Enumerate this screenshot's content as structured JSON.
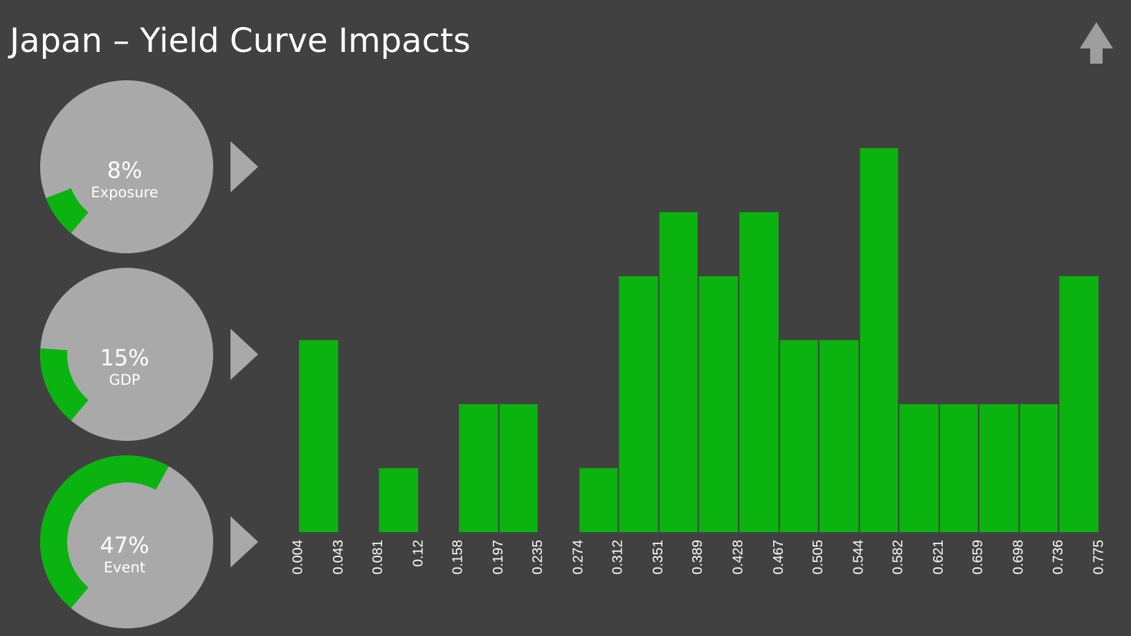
{
  "title": "Japan – Yield Curve Impacts",
  "chart_data": [
    {
      "type": "histogram",
      "bins": [
        0.004,
        0.043,
        0.081,
        0.12,
        0.158,
        0.197,
        0.235,
        0.274,
        0.312,
        0.351,
        0.389,
        0.428,
        0.467,
        0.505,
        0.544,
        0.582,
        0.621,
        0.659,
        0.698,
        0.736,
        0.775
      ],
      "values": [
        3,
        0,
        1,
        0,
        2,
        2,
        0,
        1,
        4,
        5,
        4,
        5,
        3,
        3,
        6,
        2,
        2,
        2,
        2,
        4
      ],
      "color": "#0ab30f",
      "xlim": [
        0.004,
        0.775
      ]
    },
    {
      "type": "gauge",
      "title": "Exposure",
      "values": [
        8
      ],
      "value_labels": [
        "8%"
      ],
      "color": "#0ab30f"
    },
    {
      "type": "gauge",
      "title": "GDP",
      "values": [
        15
      ],
      "value_labels": [
        "15%"
      ],
      "color": "#0ab30f"
    },
    {
      "type": "gauge",
      "title": "Event",
      "values": [
        47
      ],
      "value_labels": [
        "47%"
      ],
      "color": "#0ab30f"
    }
  ]
}
